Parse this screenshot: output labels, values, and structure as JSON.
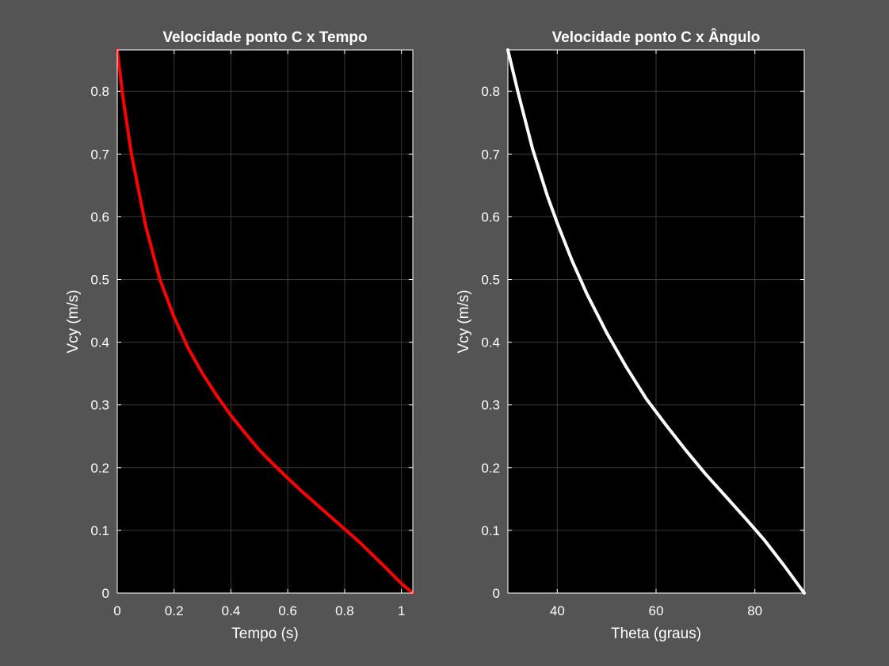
{
  "colors": {
    "figure_bg": "#545454",
    "axes_bg": "#000000",
    "grid": "#3a3a3a",
    "axis_line": "#ffffff",
    "text": "#ffffff"
  },
  "chart_data": [
    {
      "type": "line",
      "title": "Velocidade ponto C x Tempo",
      "xlabel": "Tempo (s)",
      "ylabel": "Vcy (m/s)",
      "xlim": [
        0,
        1.04
      ],
      "ylim": [
        0,
        0.866
      ],
      "xticks": [
        0,
        0.2,
        0.4,
        0.6,
        0.8,
        1
      ],
      "xtick_labels": [
        "0",
        "0.2",
        "0.4",
        "0.6",
        "0.8",
        "1"
      ],
      "yticks": [
        0,
        0.1,
        0.2,
        0.3,
        0.4,
        0.5,
        0.6,
        0.7,
        0.8
      ],
      "ytick_labels": [
        "0",
        "0.1",
        "0.2",
        "0.3",
        "0.4",
        "0.5",
        "0.6",
        "0.7",
        "0.8"
      ],
      "grid": true,
      "series": [
        {
          "color": "#ff0000",
          "x": [
            0,
            0.02,
            0.05,
            0.1,
            0.15,
            0.2,
            0.25,
            0.3,
            0.35,
            0.4,
            0.45,
            0.5,
            0.55,
            0.6,
            0.65,
            0.7,
            0.75,
            0.8,
            0.85,
            0.9,
            0.95,
            1.0,
            1.04
          ],
          "y": [
            0.866,
            0.79,
            0.7,
            0.585,
            0.5,
            0.44,
            0.39,
            0.35,
            0.315,
            0.283,
            0.255,
            0.228,
            0.205,
            0.183,
            0.162,
            0.142,
            0.122,
            0.102,
            0.082,
            0.06,
            0.038,
            0.015,
            0.0
          ]
        }
      ]
    },
    {
      "type": "line",
      "title": "Velocidade ponto C x Ângulo",
      "xlabel": "Theta (graus)",
      "ylabel": "Vcy (m/s)",
      "xlim": [
        30,
        90
      ],
      "ylim": [
        0,
        0.866
      ],
      "xticks": [
        40,
        60,
        80
      ],
      "xtick_labels": [
        "40",
        "60",
        "80"
      ],
      "yticks": [
        0,
        0.1,
        0.2,
        0.3,
        0.4,
        0.5,
        0.6,
        0.7,
        0.8
      ],
      "ytick_labels": [
        "0",
        "0.1",
        "0.2",
        "0.3",
        "0.4",
        "0.5",
        "0.6",
        "0.7",
        "0.8"
      ],
      "grid": true,
      "series": [
        {
          "color": "#ffffff",
          "x": [
            30,
            32,
            35,
            38,
            40,
            43,
            46,
            50,
            54,
            58,
            62,
            66,
            70,
            74,
            78,
            82,
            86,
            90
          ],
          "y": [
            0.866,
            0.8,
            0.708,
            0.633,
            0.59,
            0.53,
            0.477,
            0.415,
            0.36,
            0.31,
            0.268,
            0.228,
            0.19,
            0.155,
            0.12,
            0.084,
            0.043,
            0.0
          ]
        }
      ]
    }
  ]
}
